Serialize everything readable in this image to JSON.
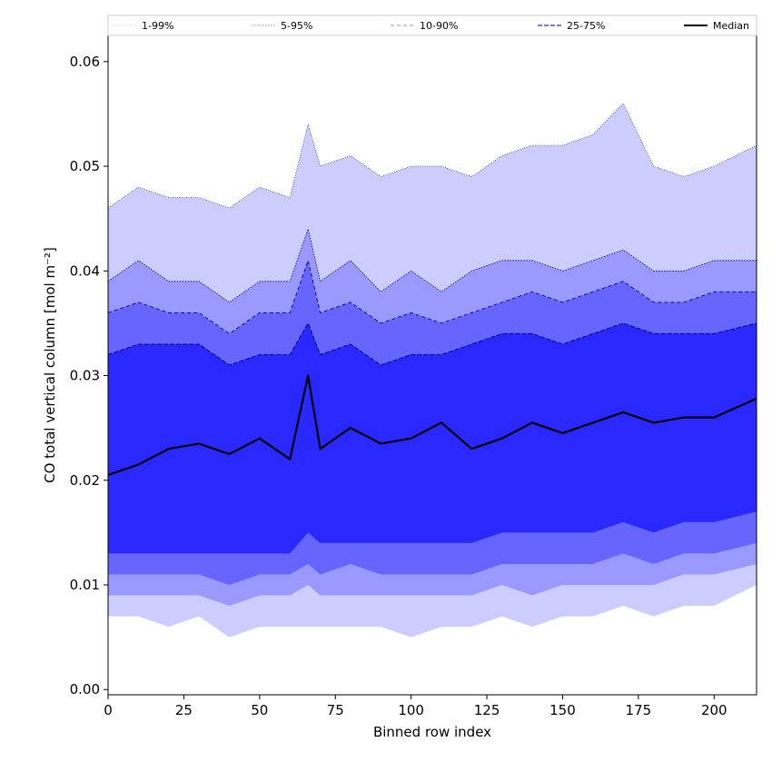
{
  "chart_data": {
    "type": "area",
    "xlabel": "Binned row index",
    "ylabel": "CO total vertical column [mol m⁻²]",
    "xlim": [
      0,
      214
    ],
    "ylim": [
      -0.0005,
      0.0625
    ],
    "xticks": [
      0,
      25,
      50,
      75,
      100,
      125,
      150,
      175,
      200
    ],
    "yticks": [
      0.0,
      0.01,
      0.02,
      0.03,
      0.04,
      0.05,
      0.06
    ],
    "ytick_labels": [
      "0.00",
      "0.01",
      "0.02",
      "0.03",
      "0.04",
      "0.05",
      "0.06"
    ],
    "legend": {
      "placement": "top",
      "entries": [
        {
          "label": "1-99%",
          "style": "dotted-thin"
        },
        {
          "label": "5-95%",
          "style": "dotted"
        },
        {
          "label": "10-90%",
          "style": "dashed-thin"
        },
        {
          "label": "25-75%",
          "style": "dashed"
        },
        {
          "label": "Median",
          "style": "solid"
        }
      ]
    },
    "colors": {
      "band_1_99": "#ccccff",
      "band_5_95": "#9999ff",
      "band_10_90": "#6666ff",
      "band_25_75": "#2828ff",
      "median": "#000000",
      "edge": "#00008b"
    },
    "x": [
      0,
      10,
      20,
      30,
      40,
      50,
      60,
      66,
      70,
      80,
      90,
      100,
      110,
      120,
      130,
      140,
      150,
      160,
      170,
      180,
      190,
      200,
      214
    ],
    "series": [
      {
        "name": "1-99%",
        "role": "band",
        "upper": [
          0.046,
          0.048,
          0.047,
          0.047,
          0.046,
          0.048,
          0.047,
          0.054,
          0.05,
          0.051,
          0.049,
          0.05,
          0.05,
          0.049,
          0.051,
          0.052,
          0.052,
          0.053,
          0.056,
          0.05,
          0.049,
          0.05,
          0.052
        ],
        "lower": [
          0.007,
          0.007,
          0.006,
          0.007,
          0.005,
          0.006,
          0.006,
          0.006,
          0.006,
          0.006,
          0.006,
          0.005,
          0.006,
          0.006,
          0.007,
          0.006,
          0.007,
          0.007,
          0.008,
          0.007,
          0.008,
          0.008,
          0.01
        ]
      },
      {
        "name": "5-95%",
        "role": "band",
        "upper": [
          0.039,
          0.041,
          0.039,
          0.039,
          0.037,
          0.039,
          0.039,
          0.044,
          0.039,
          0.041,
          0.038,
          0.04,
          0.038,
          0.04,
          0.041,
          0.041,
          0.04,
          0.041,
          0.042,
          0.04,
          0.04,
          0.041,
          0.041
        ],
        "lower": [
          0.009,
          0.009,
          0.009,
          0.009,
          0.008,
          0.009,
          0.009,
          0.01,
          0.009,
          0.009,
          0.009,
          0.009,
          0.009,
          0.009,
          0.01,
          0.009,
          0.01,
          0.01,
          0.01,
          0.01,
          0.011,
          0.011,
          0.012
        ]
      },
      {
        "name": "10-90%",
        "role": "band",
        "upper": [
          0.036,
          0.037,
          0.036,
          0.036,
          0.034,
          0.036,
          0.036,
          0.041,
          0.036,
          0.037,
          0.035,
          0.036,
          0.035,
          0.036,
          0.037,
          0.038,
          0.037,
          0.038,
          0.039,
          0.037,
          0.037,
          0.038,
          0.038
        ],
        "lower": [
          0.011,
          0.011,
          0.011,
          0.011,
          0.01,
          0.011,
          0.011,
          0.012,
          0.011,
          0.012,
          0.011,
          0.011,
          0.011,
          0.011,
          0.012,
          0.012,
          0.012,
          0.012,
          0.013,
          0.012,
          0.013,
          0.013,
          0.014
        ]
      },
      {
        "name": "25-75%",
        "role": "band",
        "upper": [
          0.032,
          0.033,
          0.033,
          0.033,
          0.031,
          0.032,
          0.032,
          0.035,
          0.032,
          0.033,
          0.031,
          0.032,
          0.032,
          0.033,
          0.034,
          0.034,
          0.033,
          0.034,
          0.035,
          0.034,
          0.034,
          0.034,
          0.035
        ],
        "lower": [
          0.013,
          0.013,
          0.013,
          0.013,
          0.013,
          0.013,
          0.013,
          0.015,
          0.014,
          0.014,
          0.014,
          0.014,
          0.014,
          0.014,
          0.015,
          0.015,
          0.015,
          0.015,
          0.016,
          0.015,
          0.016,
          0.016,
          0.017
        ]
      },
      {
        "name": "Median",
        "role": "line",
        "values": [
          0.0205,
          0.0215,
          0.023,
          0.0235,
          0.0225,
          0.024,
          0.022,
          0.03,
          0.023,
          0.025,
          0.0235,
          0.024,
          0.0255,
          0.023,
          0.024,
          0.0255,
          0.0245,
          0.0255,
          0.0265,
          0.0255,
          0.026,
          0.026,
          0.0278
        ]
      }
    ]
  }
}
